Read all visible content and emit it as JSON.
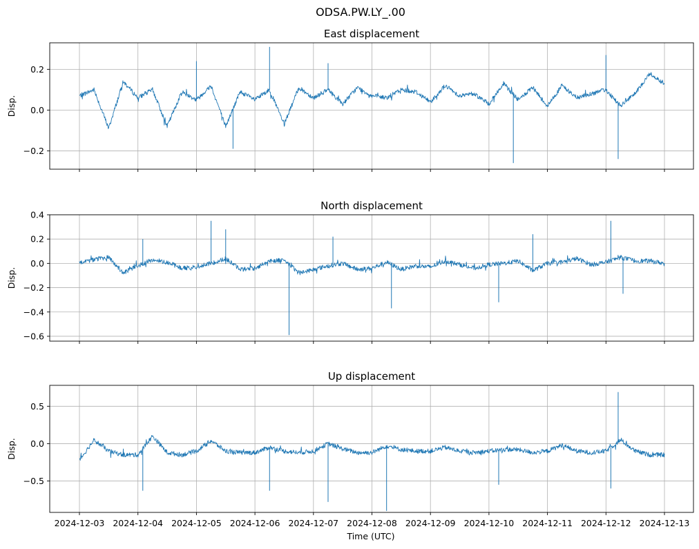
{
  "figure": {
    "suptitle": "ODSA.PW.LY_.00",
    "xlabel": "Time (UTC)"
  },
  "style": {
    "line_color": "#1f77b4",
    "grid_color": "#b0b0b0",
    "axes_color": "#000000"
  },
  "chart_data": [
    {
      "type": "line",
      "title": "East displacement",
      "ylabel": "Disp.",
      "ylim": [
        -0.29,
        0.33
      ],
      "yticks": [
        -0.2,
        0.0,
        0.2
      ],
      "yticklabels": [
        "−0.2",
        "0.0",
        "0.2"
      ],
      "grid": true,
      "x_range": [
        "2024-12-03",
        "2024-12-13"
      ],
      "xticklabels": [],
      "series": [
        {
          "x": [
            "2024-12-03T00:00",
            "2024-12-03T06:00",
            "2024-12-03T12:00",
            "2024-12-03T18:00",
            "2024-12-04T00:00",
            "2024-12-04T06:00",
            "2024-12-04T12:00",
            "2024-12-04T18:00",
            "2024-12-05T00:00",
            "2024-12-05T06:00",
            "2024-12-05T12:00",
            "2024-12-05T18:00",
            "2024-12-06T00:00",
            "2024-12-06T06:00",
            "2024-12-06T12:00",
            "2024-12-06T18:00",
            "2024-12-07T00:00",
            "2024-12-07T06:00",
            "2024-12-07T12:00",
            "2024-12-07T18:00",
            "2024-12-08T00:00",
            "2024-12-08T06:00",
            "2024-12-08T12:00",
            "2024-12-08T18:00",
            "2024-12-09T00:00",
            "2024-12-09T06:00",
            "2024-12-09T12:00",
            "2024-12-09T18:00",
            "2024-12-10T00:00",
            "2024-12-10T06:00",
            "2024-12-10T12:00",
            "2024-12-10T18:00",
            "2024-12-11T00:00",
            "2024-12-11T06:00",
            "2024-12-11T12:00",
            "2024-12-11T18:00",
            "2024-12-12T00:00",
            "2024-12-12T06:00",
            "2024-12-12T12:00",
            "2024-12-12T18:00",
            "2024-12-13T00:00"
          ],
          "values": [
            0.07,
            0.1,
            -0.09,
            0.14,
            0.06,
            0.1,
            -0.08,
            0.09,
            0.05,
            0.12,
            -0.08,
            0.09,
            0.05,
            0.1,
            -0.07,
            0.11,
            0.06,
            0.1,
            0.03,
            0.11,
            0.07,
            0.06,
            0.1,
            0.09,
            0.04,
            0.12,
            0.07,
            0.08,
            0.03,
            0.13,
            0.05,
            0.11,
            0.02,
            0.12,
            0.06,
            0.08,
            0.1,
            0.02,
            0.08,
            0.18,
            0.13
          ],
          "spikes": [
            {
              "x": "2024-12-05T00:00",
              "value": 0.24
            },
            {
              "x": "2024-12-05T15:00",
              "value": -0.19
            },
            {
              "x": "2024-12-06T06:00",
              "value": 0.31
            },
            {
              "x": "2024-12-07T06:00",
              "value": 0.23
            },
            {
              "x": "2024-12-10T10:00",
              "value": -0.26
            },
            {
              "x": "2024-12-12T00:00",
              "value": 0.27
            },
            {
              "x": "2024-12-12T05:00",
              "value": -0.24
            }
          ]
        }
      ]
    },
    {
      "type": "line",
      "title": "North displacement",
      "ylabel": "Disp.",
      "ylim": [
        -0.64,
        0.4
      ],
      "yticks": [
        -0.6,
        -0.4,
        -0.2,
        0.0,
        0.2,
        0.4
      ],
      "yticklabels": [
        "−0.6",
        "−0.4",
        "−0.2",
        "0.0",
        "0.2",
        "0.4"
      ],
      "grid": true,
      "x_range": [
        "2024-12-03",
        "2024-12-13"
      ],
      "xticklabels": [],
      "series": [
        {
          "x": [
            "2024-12-03T00:00",
            "2024-12-03T06:00",
            "2024-12-03T12:00",
            "2024-12-03T18:00",
            "2024-12-04T00:00",
            "2024-12-04T06:00",
            "2024-12-04T12:00",
            "2024-12-04T18:00",
            "2024-12-05T00:00",
            "2024-12-05T06:00",
            "2024-12-05T12:00",
            "2024-12-05T18:00",
            "2024-12-06T00:00",
            "2024-12-06T06:00",
            "2024-12-06T12:00",
            "2024-12-06T18:00",
            "2024-12-07T00:00",
            "2024-12-07T06:00",
            "2024-12-07T12:00",
            "2024-12-07T18:00",
            "2024-12-08T00:00",
            "2024-12-08T06:00",
            "2024-12-08T12:00",
            "2024-12-08T18:00",
            "2024-12-09T00:00",
            "2024-12-09T06:00",
            "2024-12-09T12:00",
            "2024-12-09T18:00",
            "2024-12-10T00:00",
            "2024-12-10T06:00",
            "2024-12-10T12:00",
            "2024-12-10T18:00",
            "2024-12-11T00:00",
            "2024-12-11T06:00",
            "2024-12-11T12:00",
            "2024-12-11T18:00",
            "2024-12-12T00:00",
            "2024-12-12T06:00",
            "2024-12-12T12:00",
            "2024-12-12T18:00",
            "2024-12-13T00:00"
          ],
          "values": [
            0.01,
            0.03,
            0.05,
            -0.08,
            -0.02,
            0.03,
            0.01,
            -0.04,
            -0.03,
            0.0,
            0.04,
            -0.05,
            -0.04,
            0.02,
            0.03,
            -0.08,
            -0.05,
            -0.02,
            0.0,
            -0.05,
            -0.04,
            0.01,
            -0.05,
            -0.02,
            -0.03,
            0.02,
            -0.01,
            -0.04,
            -0.01,
            0.0,
            0.02,
            -0.06,
            0.0,
            0.01,
            0.04,
            -0.01,
            0.01,
            0.05,
            0.02,
            0.02,
            0.0
          ],
          "spikes": [
            {
              "x": "2024-12-04T02:00",
              "value": 0.2
            },
            {
              "x": "2024-12-05T06:00",
              "value": 0.35
            },
            {
              "x": "2024-12-05T12:00",
              "value": 0.28
            },
            {
              "x": "2024-12-06T14:00",
              "value": -0.59
            },
            {
              "x": "2024-12-07T08:00",
              "value": 0.22
            },
            {
              "x": "2024-12-08T08:00",
              "value": -0.37
            },
            {
              "x": "2024-12-10T04:00",
              "value": -0.32
            },
            {
              "x": "2024-12-10T18:00",
              "value": 0.24
            },
            {
              "x": "2024-12-12T02:00",
              "value": 0.35
            },
            {
              "x": "2024-12-12T07:00",
              "value": -0.25
            }
          ]
        }
      ]
    },
    {
      "type": "line",
      "title": "Up displacement",
      "ylabel": "Disp.",
      "ylim": [
        -0.92,
        0.78
      ],
      "yticks": [
        -0.5,
        0.0,
        0.5
      ],
      "yticklabels": [
        "−0.5",
        "0.0",
        "0.5"
      ],
      "grid": true,
      "x_range": [
        "2024-12-03",
        "2024-12-13"
      ],
      "xticks": [
        "2024-12-03",
        "2024-12-04",
        "2024-12-05",
        "2024-12-06",
        "2024-12-07",
        "2024-12-08",
        "2024-12-09",
        "2024-12-10",
        "2024-12-11",
        "2024-12-12",
        "2024-12-13"
      ],
      "xticklabels": [
        "2024-12-03",
        "2024-12-04",
        "2024-12-05",
        "2024-12-06",
        "2024-12-07",
        "2024-12-08",
        "2024-12-09",
        "2024-12-10",
        "2024-12-11",
        "2024-12-12",
        "2024-12-13"
      ],
      "series": [
        {
          "x": [
            "2024-12-03T00:00",
            "2024-12-03T06:00",
            "2024-12-03T12:00",
            "2024-12-03T18:00",
            "2024-12-04T00:00",
            "2024-12-04T06:00",
            "2024-12-04T12:00",
            "2024-12-04T18:00",
            "2024-12-05T00:00",
            "2024-12-05T06:00",
            "2024-12-05T12:00",
            "2024-12-05T18:00",
            "2024-12-06T00:00",
            "2024-12-06T06:00",
            "2024-12-06T12:00",
            "2024-12-06T18:00",
            "2024-12-07T00:00",
            "2024-12-07T06:00",
            "2024-12-07T12:00",
            "2024-12-07T18:00",
            "2024-12-08T00:00",
            "2024-12-08T06:00",
            "2024-12-08T12:00",
            "2024-12-08T18:00",
            "2024-12-09T00:00",
            "2024-12-09T06:00",
            "2024-12-09T12:00",
            "2024-12-09T18:00",
            "2024-12-10T00:00",
            "2024-12-10T06:00",
            "2024-12-10T12:00",
            "2024-12-10T18:00",
            "2024-12-11T00:00",
            "2024-12-11T06:00",
            "2024-12-11T12:00",
            "2024-12-11T18:00",
            "2024-12-12T00:00",
            "2024-12-12T06:00",
            "2024-12-12T12:00",
            "2024-12-12T18:00",
            "2024-12-13T00:00"
          ],
          "values": [
            -0.22,
            0.05,
            -0.1,
            -0.15,
            -0.15,
            0.1,
            -0.12,
            -0.15,
            -0.1,
            0.04,
            -0.1,
            -0.12,
            -0.12,
            -0.05,
            -0.1,
            -0.12,
            -0.1,
            0.0,
            -0.07,
            -0.12,
            -0.12,
            -0.03,
            -0.08,
            -0.1,
            -0.1,
            -0.05,
            -0.1,
            -0.12,
            -0.1,
            -0.08,
            -0.08,
            -0.12,
            -0.1,
            -0.02,
            -0.1,
            -0.12,
            -0.1,
            0.05,
            -0.1,
            -0.15,
            -0.15
          ],
          "spikes": [
            {
              "x": "2024-12-04T02:00",
              "value": -0.63
            },
            {
              "x": "2024-12-06T06:00",
              "value": -0.63
            },
            {
              "x": "2024-12-07T06:00",
              "value": -0.78
            },
            {
              "x": "2024-12-08T06:00",
              "value": -0.9
            },
            {
              "x": "2024-12-10T04:00",
              "value": -0.55
            },
            {
              "x": "2024-12-12T02:00",
              "value": -0.6
            },
            {
              "x": "2024-12-12T05:00",
              "value": 0.69
            }
          ]
        }
      ]
    }
  ]
}
